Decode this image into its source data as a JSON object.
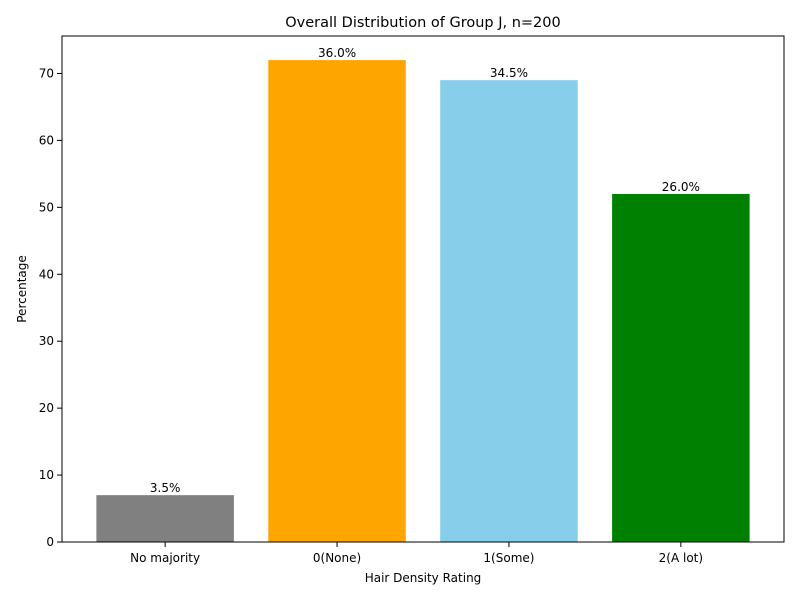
{
  "chart_data": {
    "type": "bar",
    "title": "Overall Distribution of Group J, n=200",
    "xlabel": "Hair Density Rating",
    "ylabel": "Percentage",
    "categories": [
      "No majority",
      "0(None)",
      "1(Some)",
      "2(A lot)"
    ],
    "values": [
      7,
      72,
      69,
      52
    ],
    "data_labels": [
      "3.5%",
      "36.0%",
      "34.5%",
      "26.0%"
    ],
    "colors": [
      "#808080",
      "#ffa500",
      "#87ceeb",
      "#008000"
    ],
    "ylim": [
      0,
      75.6
    ],
    "yticks": [
      0,
      10,
      20,
      30,
      40,
      50,
      60,
      70
    ],
    "grid": false,
    "legend": "none"
  }
}
